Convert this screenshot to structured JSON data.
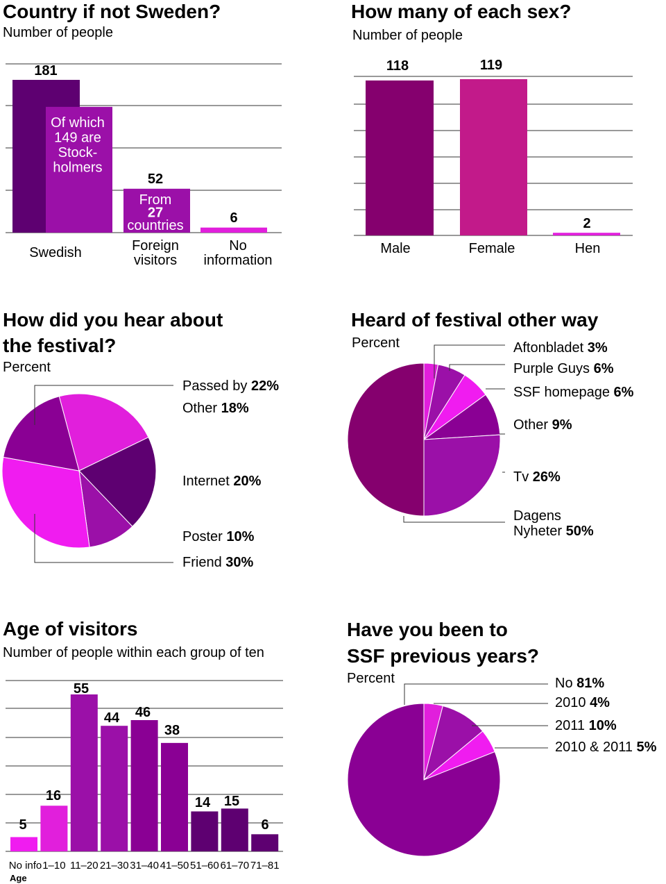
{
  "colors": {
    "dark": "#5e0071",
    "purple": "#8a0094",
    "violet": "#9b10a8",
    "magenta": "#c21a8a",
    "bright": "#e11fdc",
    "pink": "#f01cf0",
    "plum": "#85006e",
    "grid": "#333333"
  },
  "chart_data": [
    {
      "type": "bar",
      "title": "Country if not Sweden?",
      "subtitle": "Number of people",
      "categories": [
        "Swedish",
        "Foreign visitors",
        "No information"
      ],
      "values": [
        181,
        52,
        6
      ],
      "value_labels": [
        "181",
        "52",
        "6"
      ],
      "inner_label": "Of which 149 are Stockholmers",
      "inner_value": 149,
      "inner_lines": [
        "Of which",
        "149 are",
        "Stock-",
        "holmers"
      ],
      "foreign_lines": [
        "From",
        "27",
        "countries"
      ],
      "category_lines": [
        [
          "Swedish"
        ],
        [
          "Foreign",
          "visitors"
        ],
        [
          "No",
          "information"
        ]
      ]
    },
    {
      "type": "bar",
      "title": "How many of each sex?",
      "subtitle": "Number of people",
      "categories": [
        "Male",
        "Female",
        "Hen"
      ],
      "values": [
        118,
        119,
        2
      ],
      "value_labels": [
        "118",
        "119",
        "2"
      ]
    },
    {
      "type": "pie",
      "title_lines": [
        "How did you hear about",
        "the festival?"
      ],
      "subtitle": "Percent",
      "slices": [
        {
          "label": "Passed by",
          "value": 22
        },
        {
          "label": "Internet",
          "value": 20
        },
        {
          "label": "Poster",
          "value": 10
        },
        {
          "label": "Friend",
          "value": 30
        },
        {
          "label": "Other",
          "value": 18
        }
      ]
    },
    {
      "type": "pie",
      "title": "Heard of festival other way",
      "subtitle": "Percent",
      "slices": [
        {
          "label": "Aftonbladet",
          "value": 3
        },
        {
          "label": "Purple Guys",
          "value": 6
        },
        {
          "label": "SSF homepage",
          "value": 6
        },
        {
          "label": "Other",
          "value": 9
        },
        {
          "label": "Tv",
          "value": 26
        },
        {
          "label": "Dagens Nyheter",
          "value": 50
        }
      ]
    },
    {
      "type": "bar",
      "title": "Age of visitors",
      "subtitle": "Number of people within each group of ten",
      "xlabel": "Age",
      "categories": [
        "No info",
        "1–10",
        "11–20",
        "21–30",
        "31–40",
        "41–50",
        "51–60",
        "61–70",
        "71–81"
      ],
      "values": [
        5,
        16,
        55,
        44,
        46,
        38,
        14,
        15,
        6
      ]
    },
    {
      "type": "pie",
      "title_lines": [
        "Have you been to",
        "SSF previous years?"
      ],
      "subtitle": "Percent",
      "slices": [
        {
          "label": "2010",
          "value": 4
        },
        {
          "label": "2011",
          "value": 10
        },
        {
          "label": "2010 & 2011",
          "value": 5
        },
        {
          "label": "No",
          "value": 81
        }
      ]
    }
  ]
}
